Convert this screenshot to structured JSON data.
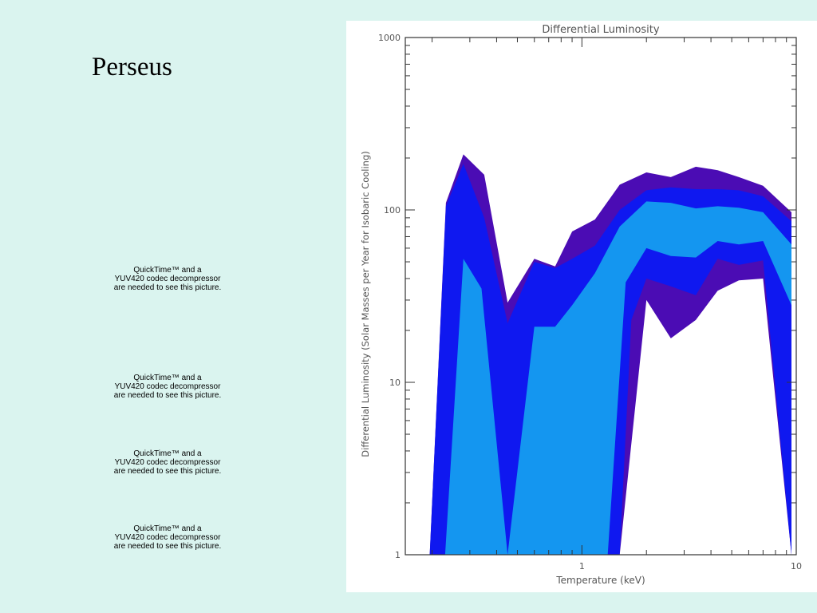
{
  "slide": {
    "title": "Perseus"
  },
  "placeholders": [
    {
      "line1": "QuickTime™ and a",
      "line2": "YUV420 codec decompressor",
      "line3": "are needed to see this picture."
    },
    {
      "line1": "QuickTime™ and a",
      "line2": "YUV420 codec decompressor",
      "line3": "are needed to see this picture."
    },
    {
      "line1": "QuickTime™ and a",
      "line2": "YUV420 codec decompressor",
      "line3": "are needed to see this picture."
    },
    {
      "line1": "QuickTime™ and a",
      "line2": "YUV420 codec decompressor",
      "line3": "are needed to see this picture."
    }
  ],
  "chart_data": {
    "type": "area",
    "title": "Differential Luminosity",
    "xlabel": "Temperature (keV)",
    "ylabel": "Differential Luminosity (Solar Masses per Year for Isobaric Cooling)",
    "xscale": "log",
    "yscale": "log",
    "xlim": [
      0.15,
      10
    ],
    "ylim": [
      1,
      1000
    ],
    "xticks": [
      "1",
      "10"
    ],
    "yticks": [
      "1",
      "10",
      "100",
      "1000"
    ],
    "grid": false,
    "legend": "none",
    "colors": {
      "outer": "#4b0cb4",
      "middle": "#0f18f0",
      "inner": "#1496f0"
    },
    "bands": [
      {
        "color": "outer",
        "upper_x": [
          0.195,
          0.232,
          0.28,
          0.35,
          0.45,
          0.6,
          0.75,
          0.9,
          1.15,
          1.5,
          2.0,
          2.6,
          3.4,
          4.3,
          5.4,
          7.0,
          9.5
        ],
        "upper_y": [
          1,
          110,
          210,
          160,
          29,
          52,
          47,
          75,
          88,
          140,
          165,
          155,
          178,
          170,
          155,
          138,
          97
        ],
        "lower_x": [
          9.5,
          7.0,
          5.4,
          4.3,
          3.4,
          2.6,
          2.0,
          1.5,
          0.45,
          0.195
        ],
        "lower_y": [
          1,
          40,
          39,
          34,
          23,
          18,
          30,
          1,
          1,
          1
        ]
      },
      {
        "color": "middle",
        "upper_x": [
          0.195,
          0.232,
          0.28,
          0.35,
          0.45,
          0.6,
          0.75,
          0.9,
          1.15,
          1.5,
          2.0,
          2.6,
          3.4,
          4.3,
          5.4,
          7.0,
          9.5
        ],
        "upper_y": [
          1,
          105,
          185,
          90,
          22,
          50,
          46,
          52,
          62,
          100,
          130,
          135,
          132,
          132,
          130,
          120,
          86
        ],
        "lower_x": [
          9.5,
          7.0,
          5.4,
          4.3,
          3.4,
          2.6,
          2.0,
          1.7,
          1.5,
          0.45,
          0.195
        ],
        "lower_y": [
          1,
          51,
          48,
          52,
          32,
          36,
          40,
          23,
          1,
          1,
          1
        ]
      },
      {
        "color": "inner",
        "upper_x": [
          0.23,
          0.28,
          0.34,
          0.45,
          0.6,
          0.75,
          0.9,
          1.15,
          1.5,
          2.0,
          2.6,
          3.4,
          4.3,
          5.4,
          7.0,
          9.5
        ],
        "upper_y": [
          1,
          52,
          35,
          1,
          21,
          21,
          28,
          43,
          80,
          112,
          110,
          102,
          105,
          103,
          97,
          63
        ],
        "lower_x": [
          9.5,
          7.0,
          5.4,
          4.3,
          3.4,
          2.6,
          2.0,
          1.6,
          1.32,
          0.23
        ],
        "lower_y": [
          28,
          66,
          63,
          66,
          53,
          54,
          60,
          38,
          1,
          1
        ]
      }
    ]
  }
}
